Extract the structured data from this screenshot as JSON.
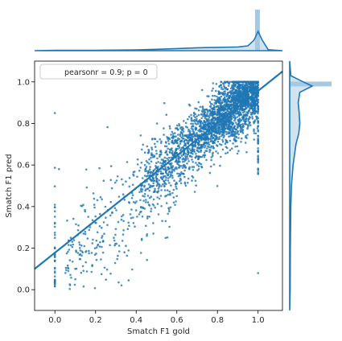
{
  "chart_data": {
    "type": "scatter",
    "title": "",
    "kind": "jointplot with regression line and marginal distributions",
    "xlabel": "Smatch F1 gold",
    "ylabel": "Smatch F1 pred",
    "xlim": [
      -0.1,
      1.12
    ],
    "ylim": [
      -0.1,
      1.1
    ],
    "x_ticks": [
      "0.0",
      "0.2",
      "0.4",
      "0.6",
      "0.8",
      "1.0"
    ],
    "y_ticks": [
      "0.0",
      "0.2",
      "0.4",
      "0.6",
      "0.8",
      "1.0"
    ],
    "grid": false,
    "legend": {
      "placement": "top-left",
      "entries": [
        "pearsonr = 0.9; p = 0"
      ]
    },
    "regression_line": {
      "points": [
        [
          -0.1,
          0.1
        ],
        [
          1.12,
          1.05
        ]
      ]
    },
    "scatter_summary": {
      "description": "dense cloud of points concentrated along the diagonal between x 0.45 and 1.0",
      "center": [
        0.75,
        0.75
      ],
      "x_range": [
        0.0,
        1.0
      ],
      "y_range": [
        0.0,
        1.0
      ],
      "correlation": 0.9
    },
    "marginal_x": {
      "description": "distribution of gold scores, peaked near 1.0",
      "kde": [
        [
          -0.1,
          0.0
        ],
        [
          0.0,
          0.02
        ],
        [
          0.2,
          0.02
        ],
        [
          0.4,
          0.04
        ],
        [
          0.5,
          0.07
        ],
        [
          0.6,
          0.11
        ],
        [
          0.7,
          0.15
        ],
        [
          0.8,
          0.17
        ],
        [
          0.85,
          0.18
        ],
        [
          0.9,
          0.19
        ],
        [
          0.95,
          0.25
        ],
        [
          0.98,
          0.55
        ],
        [
          1.0,
          1.0
        ],
        [
          1.02,
          0.55
        ],
        [
          1.05,
          0.05
        ],
        [
          1.12,
          0.0
        ]
      ]
    },
    "marginal_y": {
      "description": "distribution of predicted scores, peaked near 0.98",
      "kde": [
        [
          -0.1,
          0.0
        ],
        [
          0.0,
          0.02
        ],
        [
          0.2,
          0.03
        ],
        [
          0.4,
          0.05
        ],
        [
          0.5,
          0.08
        ],
        [
          0.6,
          0.15
        ],
        [
          0.7,
          0.28
        ],
        [
          0.75,
          0.4
        ],
        [
          0.8,
          0.45
        ],
        [
          0.85,
          0.42
        ],
        [
          0.9,
          0.38
        ],
        [
          0.95,
          0.45
        ],
        [
          0.98,
          1.0
        ],
        [
          1.0,
          0.6
        ],
        [
          1.03,
          0.05
        ],
        [
          1.1,
          0.0
        ]
      ]
    },
    "colors": {
      "points": "#1f77b4",
      "line": "#1f77b4",
      "marginal_fill": "#a6c8e2"
    }
  }
}
